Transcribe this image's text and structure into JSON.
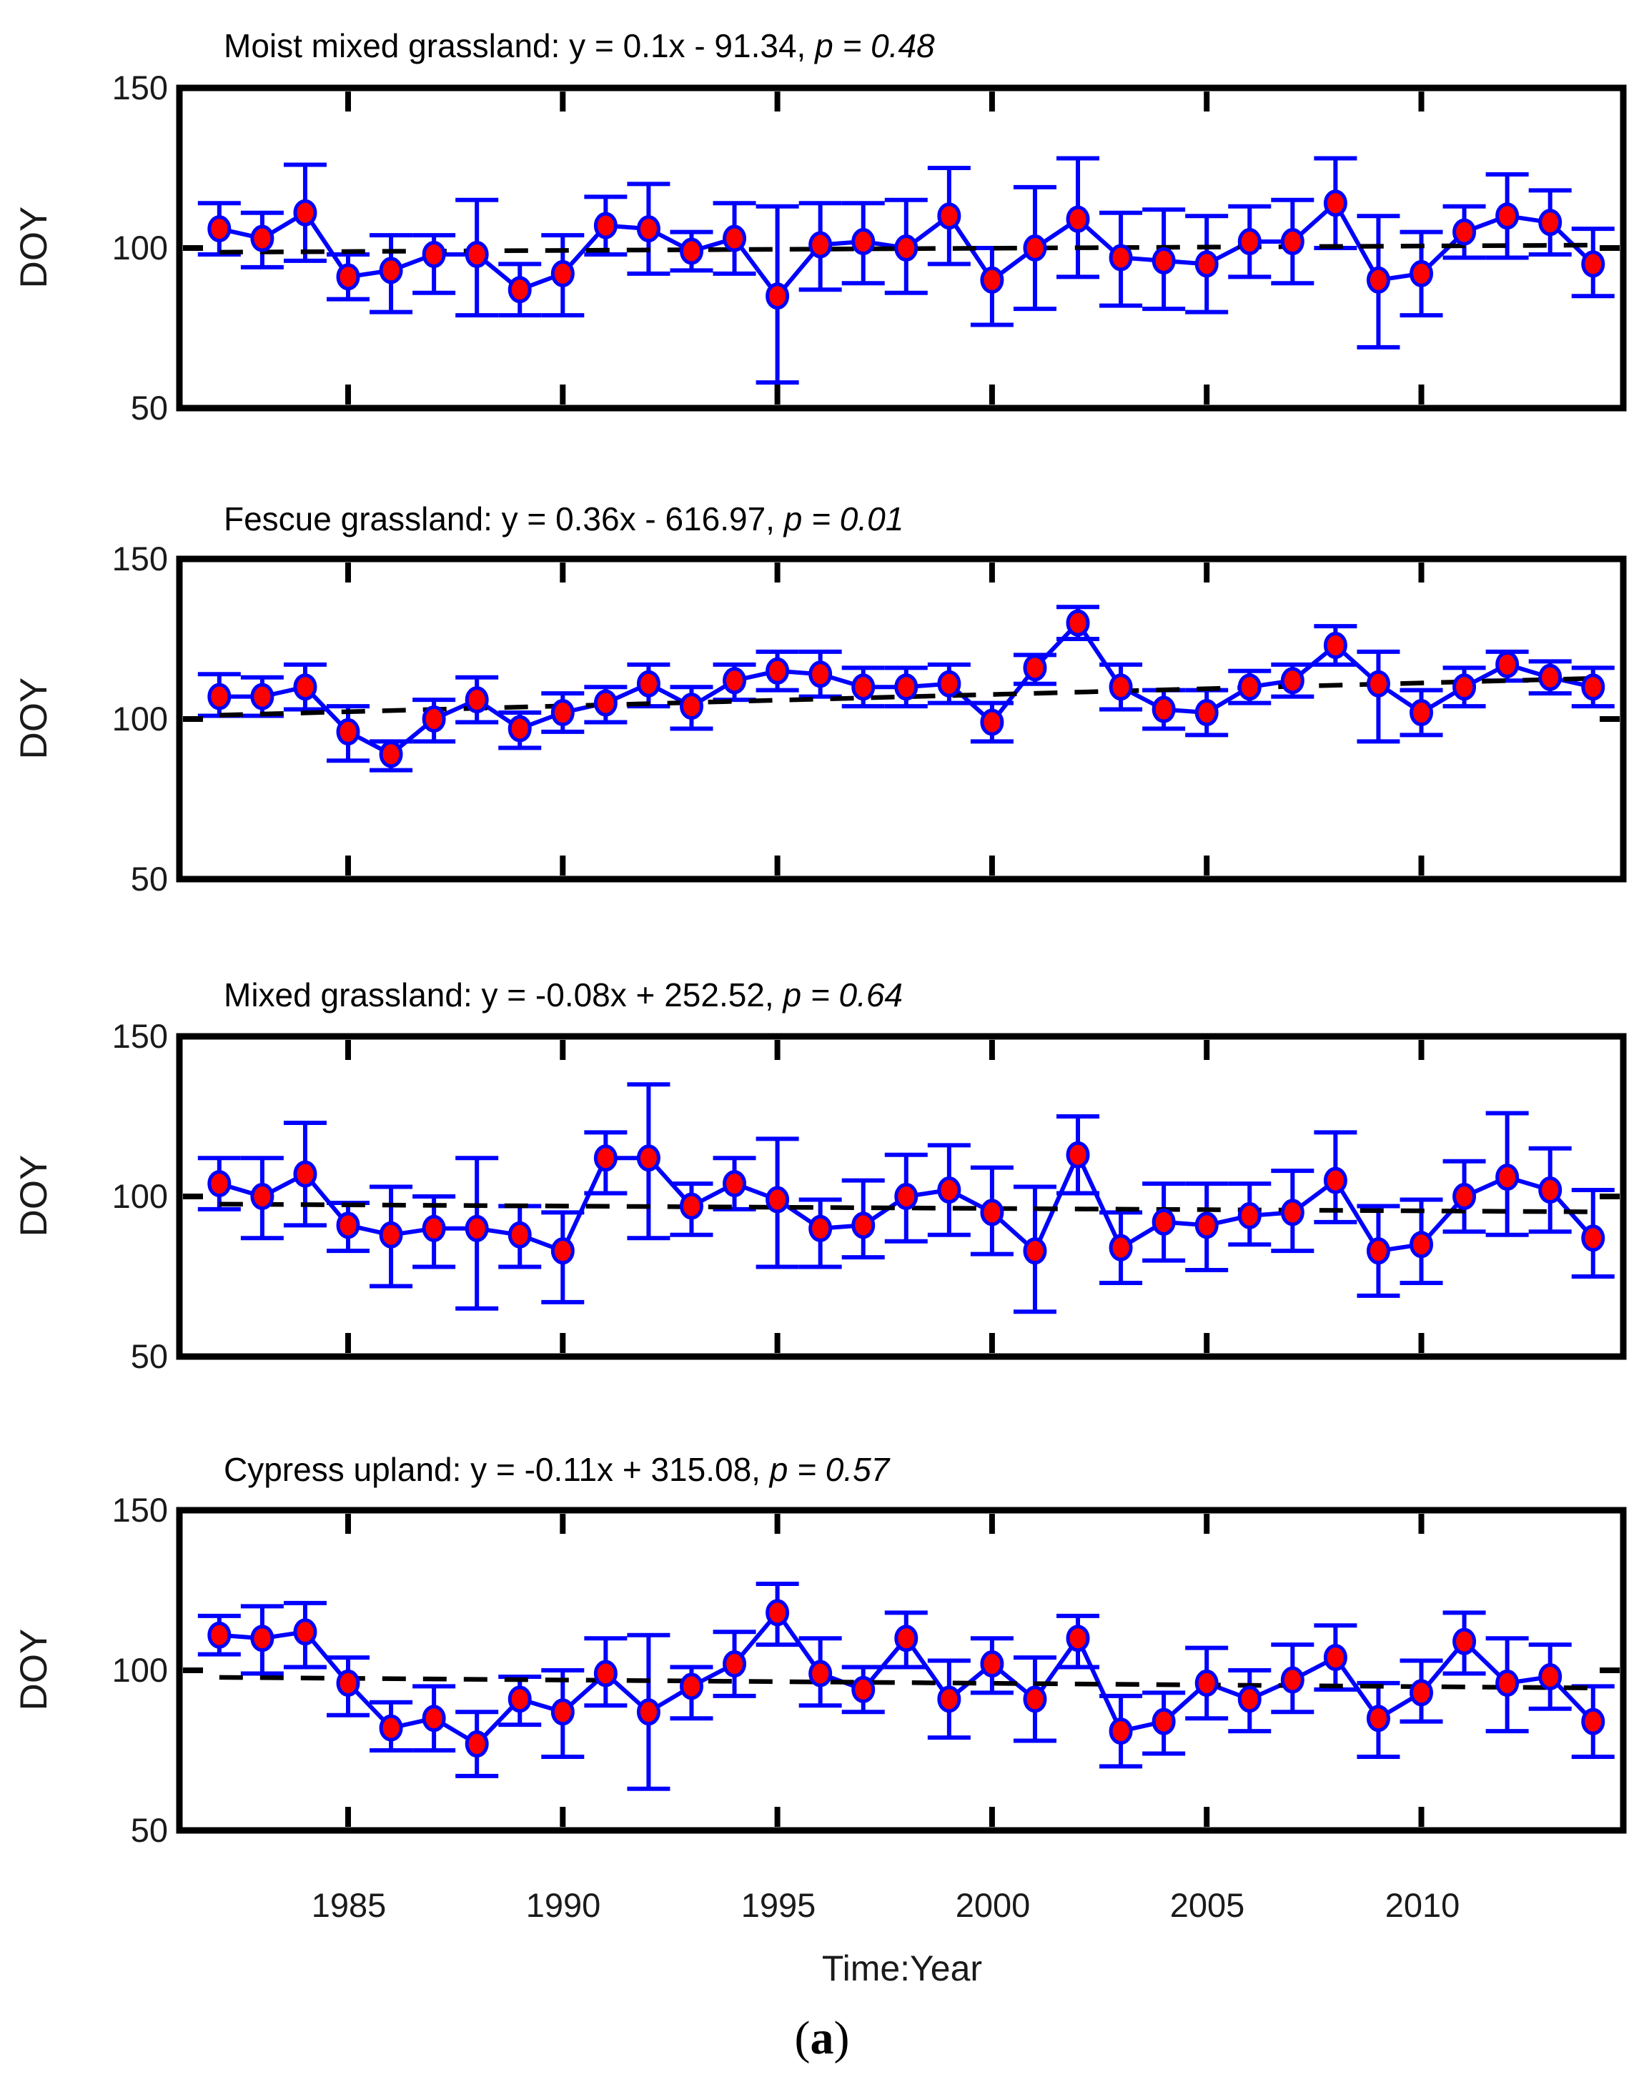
{
  "figure": {
    "ylabel": "DOY",
    "xlabel": "Time:Year",
    "caption_open": "(",
    "caption_letter": "a",
    "caption_close": ")",
    "x_ticks": [
      "1985",
      "1990",
      "1995",
      "2000",
      "2005",
      "2010"
    ],
    "y_ticks": [
      "150",
      "100",
      "50"
    ],
    "colors": {
      "series": "#0000ff",
      "marker_fill": "#ff0000",
      "marker_edge": "#0000ff",
      "trend": "#000000",
      "axis": "#000000",
      "tick_text": "#1a1a1a"
    }
  },
  "chart_data": [
    {
      "type": "line",
      "title": "Moist mixed grassland: y = 0.1x - 91.34, p = 0.48",
      "title_prefix": "Moist mixed grassland: y = 0.1x - 91.34, ",
      "title_p": "p = 0.48",
      "equation": {
        "slope": 0.1,
        "intercept": -91.34,
        "p_value": 0.48
      },
      "ylabel": "DOY",
      "xlim": [
        1981.1,
        2014.7
      ],
      "ylim": [
        50,
        150
      ],
      "legend": "none",
      "grid": false,
      "x": [
        1982,
        1983,
        1984,
        1985,
        1986,
        1987,
        1988,
        1989,
        1990,
        1991,
        1992,
        1993,
        1994,
        1995,
        1996,
        1997,
        1998,
        1999,
        2000,
        2001,
        2002,
        2003,
        2004,
        2005,
        2006,
        2007,
        2008,
        2009,
        2010,
        2011,
        2012,
        2013,
        2014
      ],
      "y": [
        106,
        103,
        111,
        91,
        93,
        98,
        98,
        87,
        92,
        107,
        106,
        99,
        103,
        85,
        101,
        102,
        100,
        110,
        90,
        100,
        109,
        97,
        96,
        95,
        102,
        102,
        114,
        90,
        92,
        105,
        110,
        108,
        95
      ],
      "err_up": [
        8,
        8,
        15,
        7,
        11,
        6,
        17,
        8,
        12,
        9,
        14,
        6,
        11,
        28,
        13,
        12,
        15,
        15,
        10,
        19,
        19,
        14,
        16,
        15,
        11,
        13,
        14,
        20,
        13,
        8,
        13,
        10,
        11
      ],
      "err_down": [
        8,
        9,
        15,
        7,
        13,
        12,
        19,
        8,
        13,
        9,
        14,
        6,
        11,
        27,
        14,
        13,
        14,
        15,
        14,
        19,
        18,
        15,
        15,
        15,
        11,
        13,
        14,
        21,
        13,
        8,
        13,
        10,
        10
      ],
      "trend": {
        "x": [
          1982,
          2014
        ],
        "y": [
          98.7,
          100.9
        ]
      }
    },
    {
      "type": "line",
      "title": "Fescue grassland: y = 0.36x - 616.97, p = 0.01",
      "title_prefix": "Fescue grassland: y = 0.36x - 616.97, ",
      "title_p": "p = 0.01",
      "equation": {
        "slope": 0.36,
        "intercept": -616.97,
        "p_value": 0.01
      },
      "ylabel": "DOY",
      "xlim": [
        1981.1,
        2014.7
      ],
      "ylim": [
        50,
        150
      ],
      "legend": "none",
      "grid": false,
      "x": [
        1982,
        1983,
        1984,
        1985,
        1986,
        1987,
        1988,
        1989,
        1990,
        1991,
        1992,
        1993,
        1994,
        1995,
        1996,
        1997,
        1998,
        1999,
        2000,
        2001,
        2002,
        2003,
        2004,
        2005,
        2006,
        2007,
        2008,
        2009,
        2010,
        2011,
        2012,
        2013,
        2014
      ],
      "y": [
        107,
        107,
        110,
        96,
        89,
        100,
        106,
        97,
        102,
        105,
        111,
        104,
        112,
        115,
        114,
        110,
        110,
        111,
        99,
        116,
        130,
        110,
        103,
        102,
        110,
        112,
        123,
        111,
        102,
        110,
        117,
        113,
        110
      ],
      "err_up": [
        7,
        6,
        7,
        8,
        4,
        6,
        7,
        5,
        6,
        5,
        6,
        6,
        5,
        6,
        7,
        6,
        6,
        6,
        6,
        4,
        5,
        7,
        6,
        7,
        5,
        5,
        6,
        10,
        7,
        6,
        4,
        5,
        6
      ],
      "err_down": [
        6,
        6,
        7,
        9,
        5,
        7,
        7,
        6,
        6,
        6,
        7,
        7,
        6,
        6,
        7,
        6,
        6,
        6,
        6,
        5,
        5,
        7,
        6,
        7,
        5,
        5,
        6,
        18,
        7,
        6,
        5,
        5,
        6
      ],
      "trend": {
        "x": [
          1982,
          2014
        ],
        "y": [
          101.2,
          112.7
        ]
      }
    },
    {
      "type": "line",
      "title": "Mixed grassland: y = -0.08x + 252.52, p = 0.64",
      "title_prefix": "Mixed grassland: y = -0.08x + 252.52, ",
      "title_p": "p = 0.64",
      "equation": {
        "slope": -0.08,
        "intercept": 252.52,
        "p_value": 0.64
      },
      "ylabel": "DOY",
      "xlim": [
        1981.1,
        2014.7
      ],
      "ylim": [
        50,
        150
      ],
      "legend": "none",
      "grid": false,
      "x": [
        1982,
        1983,
        1984,
        1985,
        1986,
        1987,
        1988,
        1989,
        1990,
        1991,
        1992,
        1993,
        1994,
        1995,
        1996,
        1997,
        1998,
        1999,
        2000,
        2001,
        2002,
        2003,
        2004,
        2005,
        2006,
        2007,
        2008,
        2009,
        2010,
        2011,
        2012,
        2013,
        2014
      ],
      "y": [
        104,
        100,
        107,
        91,
        88,
        90,
        90,
        88,
        83,
        112,
        112,
        97,
        104,
        99,
        90,
        91,
        100,
        102,
        95,
        83,
        113,
        84,
        92,
        91,
        94,
        95,
        105,
        83,
        85,
        100,
        106,
        102,
        87
      ],
      "err_up": [
        8,
        12,
        16,
        7,
        15,
        10,
        22,
        9,
        12,
        8,
        23,
        7,
        8,
        19,
        9,
        14,
        13,
        14,
        14,
        20,
        12,
        11,
        12,
        13,
        10,
        13,
        15,
        14,
        14,
        11,
        20,
        13,
        15
      ],
      "err_down": [
        8,
        13,
        16,
        8,
        16,
        12,
        25,
        10,
        16,
        11,
        25,
        9,
        8,
        21,
        12,
        10,
        14,
        14,
        13,
        19,
        12,
        11,
        12,
        14,
        9,
        12,
        13,
        14,
        12,
        11,
        18,
        13,
        12
      ],
      "trend": {
        "x": [
          1982,
          2014
        ],
        "y": [
          97.6,
          95.2
        ]
      }
    },
    {
      "type": "line",
      "title": "Cypress upland: y = -0.11x + 315.08, p = 0.57",
      "title_prefix": "Cypress upland: y = -0.11x + 315.08, ",
      "title_p": "p = 0.57",
      "equation": {
        "slope": -0.11,
        "intercept": 315.08,
        "p_value": 0.57
      },
      "ylabel": "DOY",
      "xlim": [
        1981.1,
        2014.7
      ],
      "ylim": [
        50,
        150
      ],
      "legend": "none",
      "grid": false,
      "x": [
        1982,
        1983,
        1984,
        1985,
        1986,
        1987,
        1988,
        1989,
        1990,
        1991,
        1992,
        1993,
        1994,
        1995,
        1996,
        1997,
        1998,
        1999,
        2000,
        2001,
        2002,
        2003,
        2004,
        2005,
        2006,
        2007,
        2008,
        2009,
        2010,
        2011,
        2012,
        2013,
        2014
      ],
      "y": [
        111,
        110,
        112,
        96,
        82,
        85,
        77,
        91,
        87,
        99,
        87,
        95,
        102,
        118,
        99,
        94,
        110,
        91,
        102,
        91,
        110,
        81,
        84,
        96,
        91,
        97,
        104,
        85,
        93,
        109,
        96,
        98,
        84
      ],
      "err_up": [
        6,
        10,
        9,
        8,
        8,
        10,
        10,
        7,
        13,
        11,
        24,
        6,
        10,
        9,
        11,
        7,
        8,
        12,
        8,
        13,
        7,
        11,
        9,
        11,
        9,
        11,
        10,
        11,
        10,
        9,
        14,
        10,
        11
      ],
      "err_down": [
        6,
        11,
        11,
        10,
        7,
        10,
        10,
        8,
        14,
        10,
        24,
        10,
        10,
        10,
        10,
        7,
        9,
        12,
        9,
        13,
        9,
        11,
        10,
        11,
        10,
        10,
        10,
        12,
        9,
        10,
        15,
        10,
        11
      ],
      "trend": {
        "x": [
          1982,
          2014
        ],
        "y": [
          97.8,
          94.5
        ]
      }
    }
  ]
}
